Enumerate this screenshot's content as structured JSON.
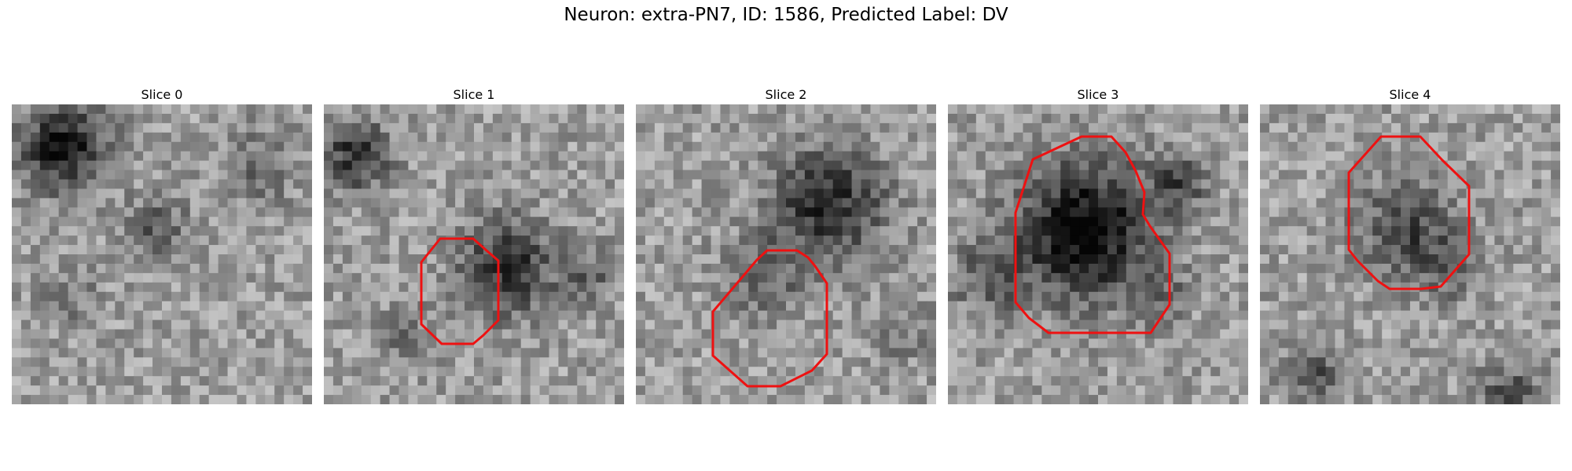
{
  "figure": {
    "title": "Neuron: extra-PN7, ID: 1586, Predicted Label: DV"
  },
  "panels": [
    {
      "title": "Slice 0",
      "has_contour": false
    },
    {
      "title": "Slice 1",
      "has_contour": true
    },
    {
      "title": "Slice 2",
      "has_contour": true
    },
    {
      "title": "Slice 3",
      "has_contour": true
    },
    {
      "title": "Slice 4",
      "has_contour": true
    }
  ],
  "colors": {
    "contour": "#ee1111",
    "background": "#ffffff"
  }
}
